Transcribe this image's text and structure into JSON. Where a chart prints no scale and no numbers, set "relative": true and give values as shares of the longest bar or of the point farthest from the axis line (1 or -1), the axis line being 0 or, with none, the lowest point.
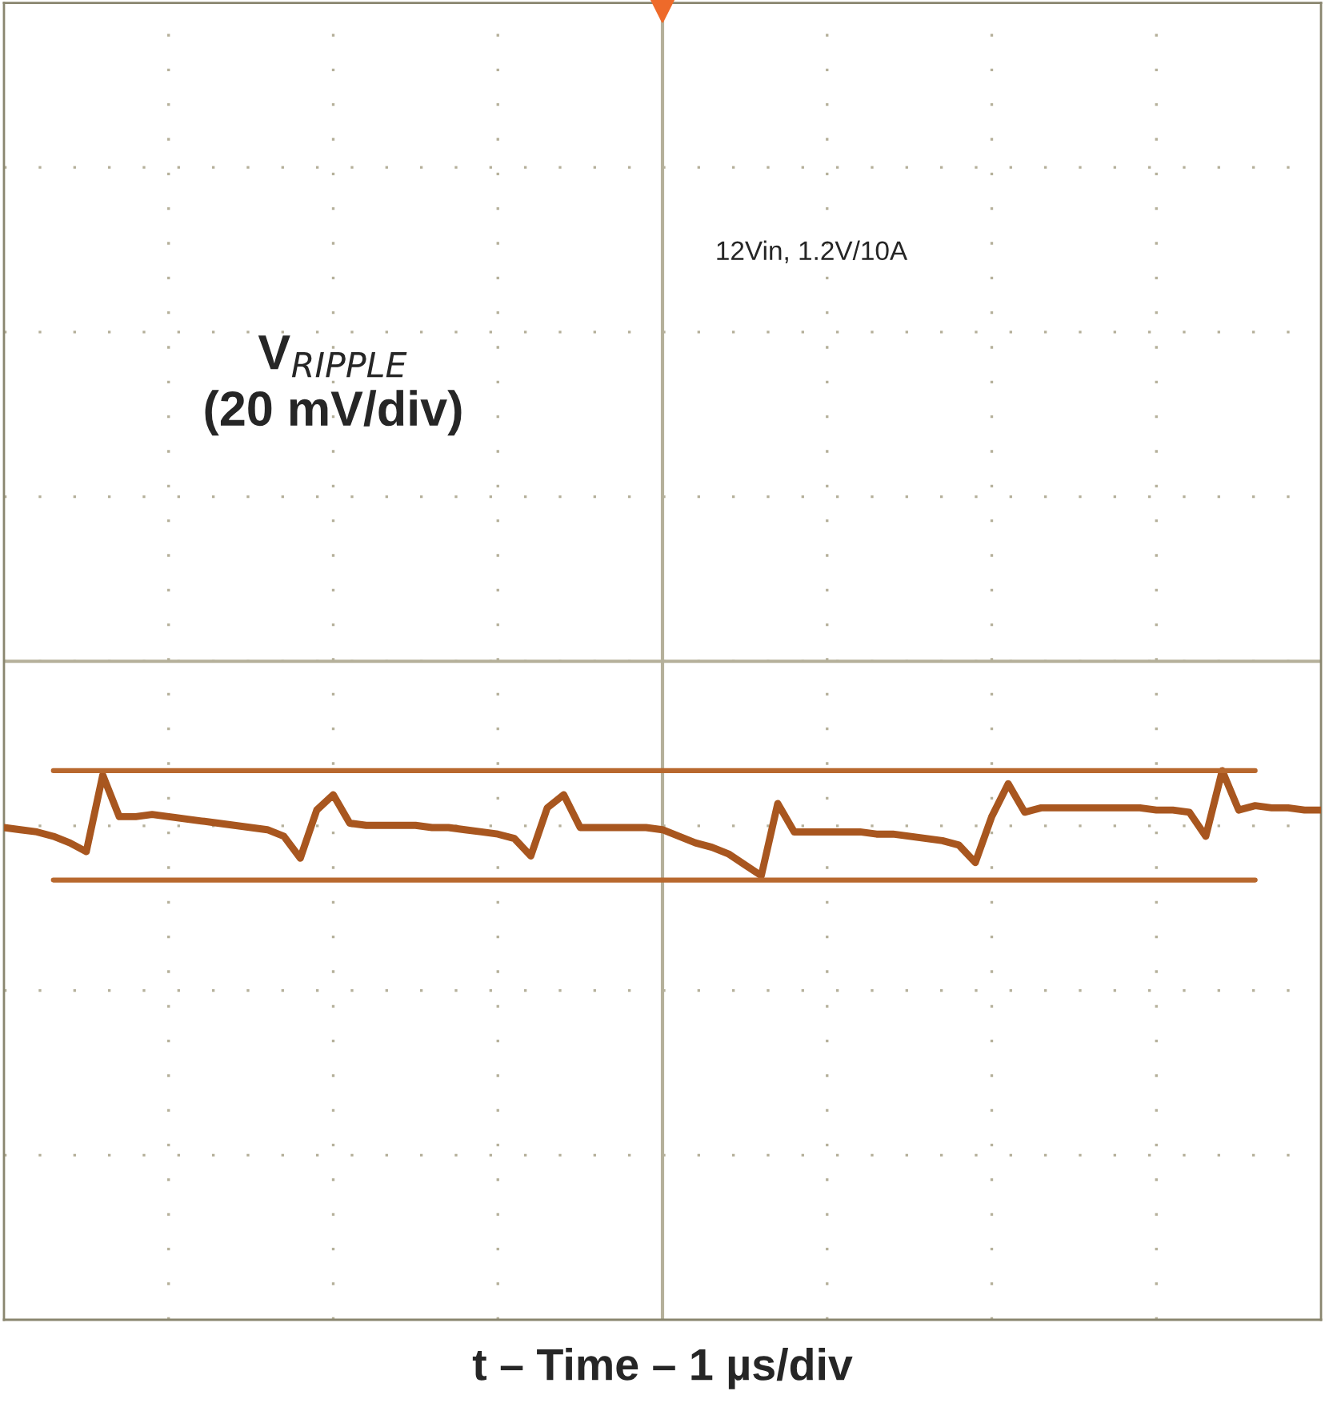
{
  "chart_data": {
    "type": "line",
    "relative": true,
    "annotations": [
      "V$_{RIPPLE}$\n(20 mV/div)",
      "12Vin, 1.2V/10A",
      "t – Time – 1 µs/div"
    ],
    "categories": [
      null,
      null,
      null,
      null,
      null,
      null,
      null,
      null,
      null,
      null,
      null,
      null,
      null,
      null,
      null,
      null,
      null,
      null,
      null,
      null,
      null,
      null,
      null,
      null,
      null,
      null,
      null,
      null,
      null,
      null,
      null,
      null,
      null,
      null,
      null,
      null,
      null,
      null,
      null,
      null,
      null,
      null,
      null,
      null,
      null,
      null,
      null,
      null,
      null,
      null,
      null,
      null,
      null,
      null,
      null,
      null,
      null,
      null,
      null,
      null,
      null,
      null,
      null,
      null,
      null,
      null,
      null,
      null,
      null,
      null,
      null,
      null,
      null,
      null,
      null,
      null,
      null,
      null,
      null,
      null,
      null
    ],
    "grid": true,
    "marker": "none",
    "line_style": "solid",
    "series": [
      {
        "color": "#a8561f",
        "values": [
          -0.76,
          -0.77,
          -0.78,
          -0.8,
          -0.83,
          -0.87,
          -0.52,
          -0.71,
          -0.71,
          -0.7,
          -0.71,
          -0.72,
          -0.73,
          -0.74,
          -0.75,
          -0.76,
          -0.77,
          -0.8,
          -0.9,
          -0.68,
          -0.61,
          -0.74,
          -0.75,
          -0.75,
          -0.75,
          -0.75,
          -0.76,
          -0.76,
          -0.77,
          -0.78,
          -0.79,
          -0.81,
          -0.89,
          -0.67,
          -0.61,
          -0.76,
          -0.76,
          -0.76,
          -0.76,
          -0.76,
          -0.77,
          -0.8,
          -0.83,
          -0.85,
          -0.88,
          -0.93,
          -0.98,
          -0.65,
          -0.78,
          -0.78,
          -0.78,
          -0.78,
          -0.78,
          -0.79,
          -0.79,
          -0.8,
          -0.81,
          -0.82,
          -0.84,
          -0.92,
          -0.71,
          -0.56,
          -0.69,
          -0.67,
          -0.67,
          -0.67,
          -0.67,
          -0.67,
          -0.67,
          -0.67,
          -0.68,
          -0.68,
          -0.69,
          -0.8,
          -0.5,
          -0.68,
          -0.66,
          -0.67,
          -0.67,
          -0.68,
          -0.68
        ]
      },
      {
        "color": "#b8682e",
        "values": [
          null,
          null,
          null,
          -0.5,
          -0.5,
          -0.5,
          -0.5,
          -0.5,
          -0.5,
          -0.5,
          -0.5,
          -0.5,
          -0.5,
          -0.5,
          -0.5,
          -0.5,
          -0.5,
          -0.5,
          -0.5,
          -0.5,
          -0.5,
          -0.5,
          -0.5,
          -0.5,
          -0.5,
          -0.5,
          -0.5,
          -0.5,
          -0.5,
          -0.5,
          -0.5,
          -0.5,
          -0.5,
          -0.5,
          -0.5,
          -0.5,
          -0.5,
          -0.5,
          -0.5,
          -0.5,
          -0.5,
          -0.5,
          -0.5,
          -0.5,
          -0.5,
          -0.5,
          -0.5,
          -0.5,
          -0.5,
          -0.5,
          -0.5,
          -0.5,
          -0.5,
          -0.5,
          -0.5,
          -0.5,
          -0.5,
          -0.5,
          -0.5,
          -0.5,
          -0.5,
          -0.5,
          -0.5,
          -0.5,
          -0.5,
          -0.5,
          -0.5,
          -0.5,
          -0.5,
          -0.5,
          -0.5,
          -0.5,
          -0.5,
          -0.5,
          -0.5,
          -0.5,
          -0.5,
          null,
          null,
          null,
          null
        ]
      },
      {
        "color": "#b8682e",
        "values": [
          null,
          null,
          null,
          -1,
          -1,
          -1,
          -1,
          -1,
          -1,
          -1,
          -1,
          -1,
          -1,
          -1,
          -1,
          -1,
          -1,
          -1,
          -1,
          -1,
          -1,
          -1,
          -1,
          -1,
          -1,
          -1,
          -1,
          -1,
          -1,
          -1,
          -1,
          -1,
          -1,
          -1,
          -1,
          -1,
          -1,
          -1,
          -1,
          -1,
          -1,
          -1,
          -1,
          -1,
          -1,
          -1,
          -1,
          -1,
          -1,
          -1,
          -1,
          -1,
          -1,
          -1,
          -1,
          -1,
          -1,
          -1,
          -1,
          -1,
          -1,
          -1,
          -1,
          -1,
          -1,
          -1,
          -1,
          -1,
          -1,
          -1,
          -1,
          -1,
          -1,
          -1,
          -1,
          -1,
          -1,
          null,
          null,
          null,
          null
        ]
      }
    ]
  }
}
